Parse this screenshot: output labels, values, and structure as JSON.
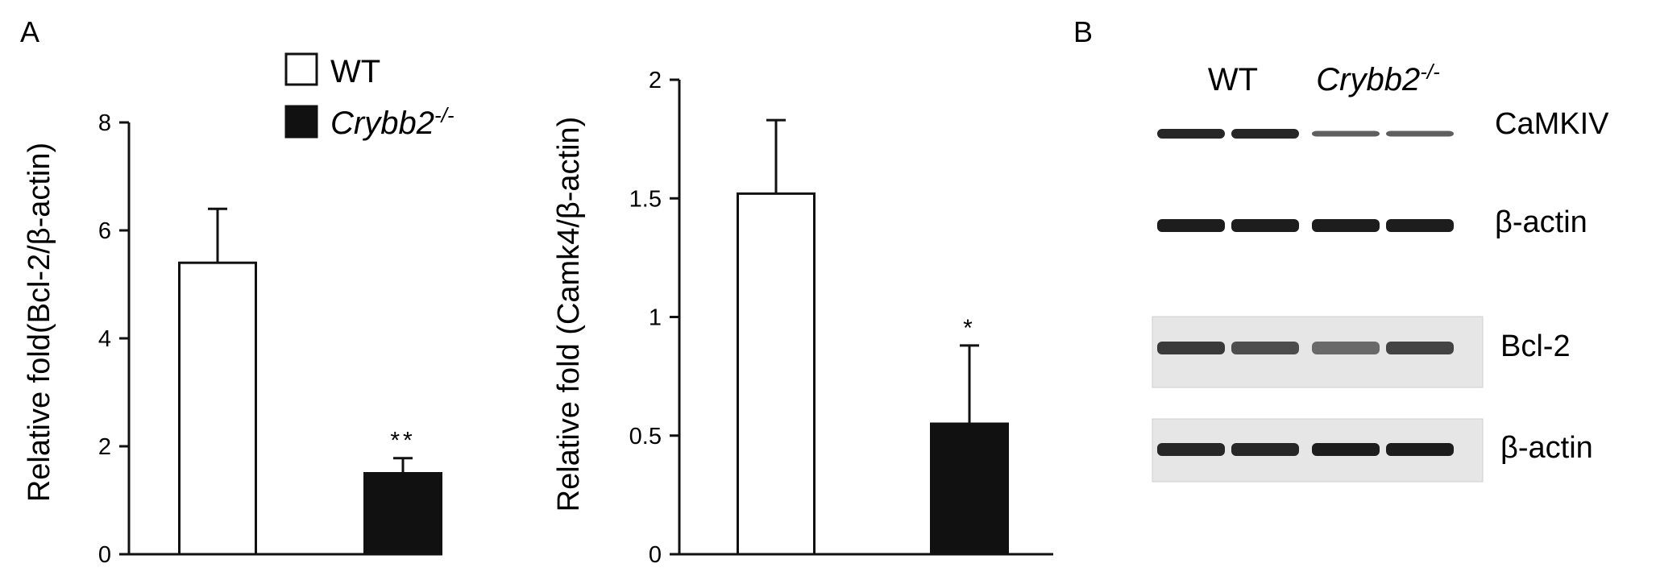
{
  "panels": {
    "a_label": "A",
    "b_label": "B"
  },
  "legend": {
    "wt_label": "WT",
    "ko_label": "Crybb2",
    "ko_superscript": "-/-"
  },
  "chart_data": [
    {
      "type": "bar",
      "ylabel": "Relative fold(Bcl-2/β-actin)",
      "ylim": [
        0,
        8
      ],
      "yticks": [
        0,
        2,
        4,
        6,
        8
      ],
      "categories": [
        "WT",
        "Crybb2-/-"
      ],
      "values": [
        5.4,
        1.5
      ],
      "errors": [
        1.0,
        0.28
      ],
      "fills": [
        "#ffffff",
        "#111111"
      ],
      "significance": [
        "",
        "**"
      ]
    },
    {
      "type": "bar",
      "ylabel": "Relative fold (Camk4/β-actin)",
      "ylim": [
        0,
        2
      ],
      "yticks": [
        "0",
        "0.5",
        "1",
        "1.5",
        "2"
      ],
      "categories": [
        "WT",
        "Crybb2-/-"
      ],
      "values": [
        1.52,
        0.55
      ],
      "errors": [
        0.31,
        0.33
      ],
      "fills": [
        "#ffffff",
        "#111111"
      ],
      "significance": [
        "",
        "*"
      ]
    }
  ],
  "blot": {
    "group_wt": "WT",
    "group_ko": "Crybb2",
    "group_ko_sup": "-/-",
    "rows": [
      {
        "label": "CaMKIV",
        "intensity": [
          0.85,
          0.85,
          0.55,
          0.55
        ]
      },
      {
        "label": "β-actin",
        "intensity": [
          0.9,
          0.9,
          0.9,
          0.9
        ]
      },
      {
        "label": "Bcl-2",
        "intensity": [
          0.75,
          0.65,
          0.5,
          0.7
        ]
      },
      {
        "label": "β-actin",
        "intensity": [
          0.85,
          0.85,
          0.9,
          0.9
        ]
      }
    ]
  },
  "colors": {
    "axis": "#111111",
    "ko_fill": "#111111",
    "wt_fill": "#ffffff"
  }
}
